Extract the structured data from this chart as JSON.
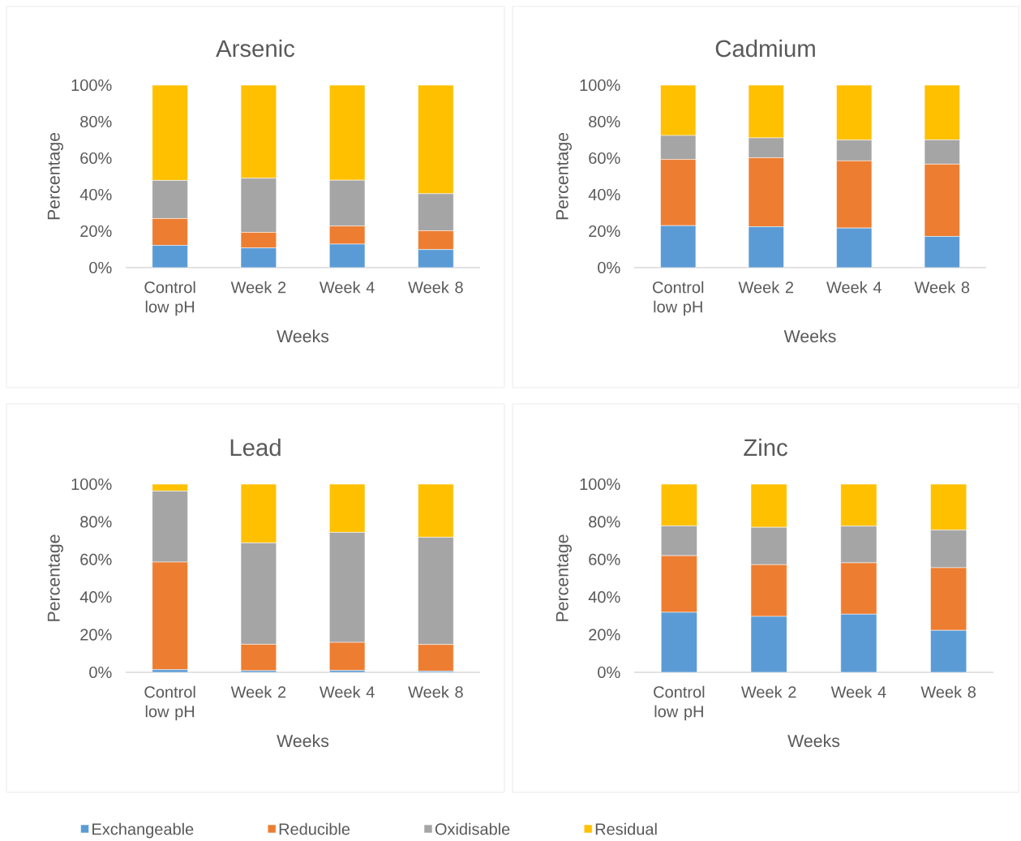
{
  "chart_data": [
    {
      "type": "bar",
      "stacked": true,
      "title": "Arsenic",
      "xlabel": "Weeks",
      "ylabel": "Percentage",
      "categories": [
        "Control low pH",
        "Week 2",
        "Week 4",
        "Week 8"
      ],
      "ylim": [
        0,
        100
      ],
      "yticks": [
        {
          "value": 0,
          "label": "0%"
        },
        {
          "value": 20,
          "label": "20%"
        },
        {
          "value": 40,
          "label": "40%"
        },
        {
          "value": 60,
          "label": "60%"
        },
        {
          "value": 80,
          "label": "80%"
        },
        {
          "value": 100,
          "label": "100%"
        }
      ],
      "grid": false,
      "series": [
        {
          "color": "#5b9bd5",
          "values": [
            12.2,
            10.8,
            12.9,
            9.9
          ]
        },
        {
          "color": "#ed7d31",
          "values": [
            14.7,
            8.5,
            9.9,
            10.3
          ]
        },
        {
          "color": "#a5a5a5",
          "values": [
            20.9,
            29.7,
            25.1,
            20.3
          ]
        },
        {
          "color": "#ffc000",
          "values": [
            52.2,
            51.0,
            52.1,
            59.5
          ]
        }
      ]
    },
    {
      "type": "bar",
      "stacked": true,
      "title": "Cadmium",
      "xlabel": "Weeks",
      "ylabel": "Percentage",
      "categories": [
        "Control low pH",
        "Week 2",
        "Week 4",
        "Week 8"
      ],
      "ylim": [
        0,
        100
      ],
      "yticks": [
        {
          "value": 0,
          "label": "0%"
        },
        {
          "value": 20,
          "label": "20%"
        },
        {
          "value": 40,
          "label": "40%"
        },
        {
          "value": 60,
          "label": "60%"
        },
        {
          "value": 80,
          "label": "80%"
        },
        {
          "value": 100,
          "label": "100%"
        }
      ],
      "grid": false,
      "series": [
        {
          "color": "#5b9bd5",
          "values": [
            23.0,
            22.4,
            21.7,
            17.1
          ]
        },
        {
          "color": "#ed7d31",
          "values": [
            36.3,
            37.8,
            36.8,
            39.6
          ]
        },
        {
          "color": "#a5a5a5",
          "values": [
            13.1,
            10.9,
            11.4,
            13.3
          ]
        },
        {
          "color": "#ffc000",
          "values": [
            27.6,
            28.9,
            30.1,
            30.0
          ]
        }
      ]
    },
    {
      "type": "bar",
      "stacked": true,
      "title": "Lead",
      "xlabel": "Weeks",
      "ylabel": "Percentage",
      "categories": [
        "Control low pH",
        "Week 2",
        "Week 4",
        "Week 8"
      ],
      "ylim": [
        0,
        100
      ],
      "yticks": [
        {
          "value": 0,
          "label": "0%"
        },
        {
          "value": 20,
          "label": "20%"
        },
        {
          "value": 40,
          "label": "40%"
        },
        {
          "value": 60,
          "label": "60%"
        },
        {
          "value": 80,
          "label": "80%"
        },
        {
          "value": 100,
          "label": "100%"
        }
      ],
      "grid": false,
      "legend": "bottom",
      "series": [
        {
          "name": "Exchangeable",
          "color": "#5b9bd5",
          "values": [
            1.4,
            0.9,
            1.0,
            0.6
          ]
        },
        {
          "name": "Reducible",
          "color": "#ed7d31",
          "values": [
            57.2,
            14.0,
            14.9,
            14.2
          ]
        },
        {
          "name": "Oxidisable",
          "color": "#a5a5a5",
          "values": [
            37.7,
            53.9,
            58.5,
            57.0
          ]
        },
        {
          "name": "Residual",
          "color": "#ffc000",
          "values": [
            3.7,
            31.2,
            25.6,
            28.2
          ]
        }
      ]
    },
    {
      "type": "bar",
      "stacked": true,
      "title": "Zinc",
      "xlabel": "Weeks",
      "ylabel": "Percentage",
      "categories": [
        "Control low pH",
        "Week 2",
        "Week 4",
        "Week 8"
      ],
      "ylim": [
        0,
        100
      ],
      "yticks": [
        {
          "value": 0,
          "label": "0%"
        },
        {
          "value": 20,
          "label": "20%"
        },
        {
          "value": 40,
          "label": "40%"
        },
        {
          "value": 60,
          "label": "60%"
        },
        {
          "value": 80,
          "label": "80%"
        },
        {
          "value": 100,
          "label": "100%"
        }
      ],
      "grid": false,
      "series": [
        {
          "color": "#5b9bd5",
          "values": [
            31.9,
            29.7,
            30.9,
            22.3
          ]
        },
        {
          "color": "#ed7d31",
          "values": [
            30.1,
            27.5,
            27.3,
            33.3
          ]
        },
        {
          "color": "#a5a5a5",
          "values": [
            15.8,
            19.9,
            19.5,
            20.0
          ]
        },
        {
          "color": "#ffc000",
          "values": [
            22.2,
            22.9,
            22.3,
            24.4
          ]
        }
      ]
    }
  ]
}
